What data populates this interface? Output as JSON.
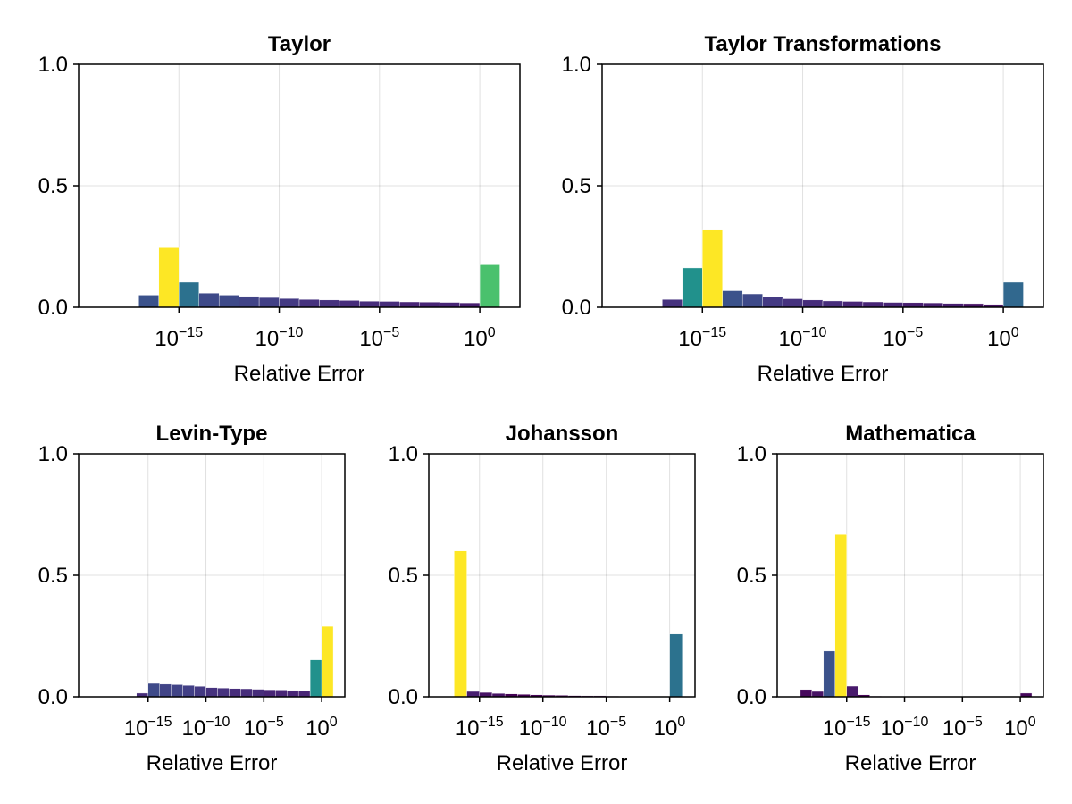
{
  "chart_data": [
    {
      "type": "bar",
      "title": "Taylor",
      "xlabel": "Relative Error",
      "ylabel": "",
      "x_scale": "log10",
      "xlim_exponent": [
        -20,
        2
      ],
      "ylim": [
        0,
        1
      ],
      "yticks": [
        "0.0",
        "0.5",
        "1.0"
      ],
      "xticks": [
        {
          "base": "10",
          "exp": "−15"
        },
        {
          "base": "10",
          "exp": "−10"
        },
        {
          "base": "10",
          "exp": "−5"
        },
        {
          "base": "10",
          "exp": "0"
        }
      ],
      "grid": true,
      "bins": [
        {
          "from": -17,
          "to": -16,
          "value": 0.05,
          "color": "#3b528b"
        },
        {
          "from": -16,
          "to": -15,
          "value": 0.245,
          "color": "#fde725"
        },
        {
          "from": -15,
          "to": -14,
          "value": 0.103,
          "color": "#2c718e"
        },
        {
          "from": -14,
          "to": -13,
          "value": 0.058,
          "color": "#3e4a89"
        },
        {
          "from": -13,
          "to": -12,
          "value": 0.05,
          "color": "#3e4a89"
        },
        {
          "from": -12,
          "to": -11,
          "value": 0.045,
          "color": "#414487"
        },
        {
          "from": -11,
          "to": -10,
          "value": 0.04,
          "color": "#424086"
        },
        {
          "from": -10,
          "to": -9,
          "value": 0.036,
          "color": "#443a83"
        },
        {
          "from": -9,
          "to": -8,
          "value": 0.032,
          "color": "#46327e"
        },
        {
          "from": -8,
          "to": -7,
          "value": 0.03,
          "color": "#46327e"
        },
        {
          "from": -7,
          "to": -6,
          "value": 0.028,
          "color": "#472d7b"
        },
        {
          "from": -6,
          "to": -5,
          "value": 0.025,
          "color": "#472d7b"
        },
        {
          "from": -5,
          "to": -4,
          "value": 0.024,
          "color": "#472d7b"
        },
        {
          "from": -4,
          "to": -3,
          "value": 0.022,
          "color": "#482576"
        },
        {
          "from": -3,
          "to": -2,
          "value": 0.021,
          "color": "#482576"
        },
        {
          "from": -2,
          "to": -1,
          "value": 0.02,
          "color": "#482576"
        },
        {
          "from": -1,
          "to": 0,
          "value": 0.018,
          "color": "#481f70"
        },
        {
          "from": 0,
          "to": 1,
          "value": 0.175,
          "color": "#4ac16d"
        }
      ]
    },
    {
      "type": "bar",
      "title": "Taylor Transformations",
      "xlabel": "Relative Error",
      "ylabel": "",
      "x_scale": "log10",
      "xlim_exponent": [
        -20,
        2
      ],
      "ylim": [
        0,
        1
      ],
      "yticks": [
        "0.0",
        "0.5",
        "1.0"
      ],
      "xticks": [
        {
          "base": "10",
          "exp": "−15"
        },
        {
          "base": "10",
          "exp": "−10"
        },
        {
          "base": "10",
          "exp": "−5"
        },
        {
          "base": "10",
          "exp": "0"
        }
      ],
      "grid": true,
      "bins": [
        {
          "from": -17,
          "to": -16,
          "value": 0.032,
          "color": "#46327e"
        },
        {
          "from": -16,
          "to": -15,
          "value": 0.162,
          "color": "#21918c"
        },
        {
          "from": -15,
          "to": -14,
          "value": 0.32,
          "color": "#fde725"
        },
        {
          "from": -14,
          "to": -13,
          "value": 0.068,
          "color": "#3b528b"
        },
        {
          "from": -13,
          "to": -12,
          "value": 0.055,
          "color": "#3e4a89"
        },
        {
          "from": -12,
          "to": -11,
          "value": 0.042,
          "color": "#443a83"
        },
        {
          "from": -11,
          "to": -10,
          "value": 0.035,
          "color": "#46327e"
        },
        {
          "from": -10,
          "to": -9,
          "value": 0.03,
          "color": "#472d7b"
        },
        {
          "from": -9,
          "to": -8,
          "value": 0.026,
          "color": "#472d7b"
        },
        {
          "from": -8,
          "to": -7,
          "value": 0.024,
          "color": "#482576"
        },
        {
          "from": -7,
          "to": -6,
          "value": 0.022,
          "color": "#482576"
        },
        {
          "from": -6,
          "to": -5,
          "value": 0.02,
          "color": "#482576"
        },
        {
          "from": -5,
          "to": -4,
          "value": 0.019,
          "color": "#481f70"
        },
        {
          "from": -4,
          "to": -3,
          "value": 0.018,
          "color": "#481f70"
        },
        {
          "from": -3,
          "to": -2,
          "value": 0.016,
          "color": "#481f70"
        },
        {
          "from": -2,
          "to": -1,
          "value": 0.015,
          "color": "#471365"
        },
        {
          "from": -1,
          "to": 0,
          "value": 0.012,
          "color": "#471365"
        },
        {
          "from": 0,
          "to": 1,
          "value": 0.103,
          "color": "#31688e"
        }
      ]
    },
    {
      "type": "bar",
      "title": "Levin-Type",
      "xlabel": "Relative Error",
      "ylabel": "",
      "x_scale": "log10",
      "xlim_exponent": [
        -21,
        2
      ],
      "ylim": [
        0,
        1
      ],
      "yticks": [
        "0.0",
        "0.5",
        "1.0"
      ],
      "xticks": [
        {
          "base": "10",
          "exp": "−15"
        },
        {
          "base": "10",
          "exp": "−10"
        },
        {
          "base": "10",
          "exp": "−5"
        },
        {
          "base": "10",
          "exp": "0"
        }
      ],
      "grid": true,
      "bins": [
        {
          "from": -16,
          "to": -15,
          "value": 0.015,
          "color": "#472d7b"
        },
        {
          "from": -15,
          "to": -14,
          "value": 0.055,
          "color": "#3e4a89"
        },
        {
          "from": -14,
          "to": -13,
          "value": 0.052,
          "color": "#414487"
        },
        {
          "from": -13,
          "to": -12,
          "value": 0.05,
          "color": "#414487"
        },
        {
          "from": -12,
          "to": -11,
          "value": 0.047,
          "color": "#424086"
        },
        {
          "from": -11,
          "to": -10,
          "value": 0.043,
          "color": "#443a83"
        },
        {
          "from": -10,
          "to": -9,
          "value": 0.038,
          "color": "#46327e"
        },
        {
          "from": -9,
          "to": -8,
          "value": 0.036,
          "color": "#46327e"
        },
        {
          "from": -8,
          "to": -7,
          "value": 0.034,
          "color": "#472d7b"
        },
        {
          "from": -7,
          "to": -6,
          "value": 0.033,
          "color": "#472d7b"
        },
        {
          "from": -6,
          "to": -5,
          "value": 0.031,
          "color": "#472d7b"
        },
        {
          "from": -5,
          "to": -4,
          "value": 0.029,
          "color": "#482576"
        },
        {
          "from": -4,
          "to": -3,
          "value": 0.028,
          "color": "#482576"
        },
        {
          "from": -3,
          "to": -2,
          "value": 0.026,
          "color": "#482576"
        },
        {
          "from": -2,
          "to": -1,
          "value": 0.024,
          "color": "#482576"
        },
        {
          "from": -1,
          "to": 0,
          "value": 0.152,
          "color": "#21918c"
        },
        {
          "from": 0,
          "to": 1,
          "value": 0.29,
          "color": "#fde725"
        }
      ]
    },
    {
      "type": "bar",
      "title": "Johansson",
      "xlabel": "Relative Error",
      "ylabel": "",
      "x_scale": "log10",
      "xlim_exponent": [
        -19,
        2
      ],
      "ylim": [
        0,
        1
      ],
      "yticks": [
        "0.0",
        "0.5",
        "1.0"
      ],
      "xticks": [
        {
          "base": "10",
          "exp": "−15"
        },
        {
          "base": "10",
          "exp": "−10"
        },
        {
          "base": "10",
          "exp": "−5"
        },
        {
          "base": "10",
          "exp": "0"
        }
      ],
      "grid": true,
      "bins": [
        {
          "from": -17,
          "to": -16,
          "value": 0.6,
          "color": "#fde725"
        },
        {
          "from": -16,
          "to": -15,
          "value": 0.022,
          "color": "#481f70"
        },
        {
          "from": -15,
          "to": -14,
          "value": 0.018,
          "color": "#471365"
        },
        {
          "from": -14,
          "to": -13,
          "value": 0.014,
          "color": "#471365"
        },
        {
          "from": -13,
          "to": -12,
          "value": 0.012,
          "color": "#440154"
        },
        {
          "from": -12,
          "to": -11,
          "value": 0.01,
          "color": "#440154"
        },
        {
          "from": -11,
          "to": -10,
          "value": 0.008,
          "color": "#440154"
        },
        {
          "from": -10,
          "to": -9,
          "value": 0.007,
          "color": "#440154"
        },
        {
          "from": -9,
          "to": -8,
          "value": 0.006,
          "color": "#440154"
        },
        {
          "from": -8,
          "to": -7,
          "value": 0.005,
          "color": "#440154"
        },
        {
          "from": -7,
          "to": -6,
          "value": 0.004,
          "color": "#440154"
        },
        {
          "from": -6,
          "to": -5,
          "value": 0.004,
          "color": "#440154"
        },
        {
          "from": -5,
          "to": -4,
          "value": 0.003,
          "color": "#440154"
        },
        {
          "from": 0,
          "to": 1,
          "value": 0.258,
          "color": "#2c728e"
        }
      ]
    },
    {
      "type": "bar",
      "title": "Mathematica",
      "xlabel": "Relative Error",
      "ylabel": "",
      "x_scale": "log10",
      "xlim_exponent": [
        -21,
        2
      ],
      "ylim": [
        0,
        1
      ],
      "yticks": [
        "0.0",
        "0.5",
        "1.0"
      ],
      "xticks": [
        {
          "base": "10",
          "exp": "−15"
        },
        {
          "base": "10",
          "exp": "−10"
        },
        {
          "base": "10",
          "exp": "−5"
        },
        {
          "base": "10",
          "exp": "0"
        }
      ],
      "grid": true,
      "bins": [
        {
          "from": -19,
          "to": -18,
          "value": 0.03,
          "color": "#46085c"
        },
        {
          "from": -18,
          "to": -17,
          "value": 0.022,
          "color": "#471365"
        },
        {
          "from": -17,
          "to": -16,
          "value": 0.188,
          "color": "#3b528b"
        },
        {
          "from": -16,
          "to": -15,
          "value": 0.668,
          "color": "#fde725"
        },
        {
          "from": -15,
          "to": -14,
          "value": 0.044,
          "color": "#481a6c"
        },
        {
          "from": -14,
          "to": -13,
          "value": 0.008,
          "color": "#440154"
        },
        {
          "from": -13,
          "to": -12,
          "value": 0.003,
          "color": "#440154"
        },
        {
          "from": 0,
          "to": 1,
          "value": 0.015,
          "color": "#46085c"
        }
      ]
    }
  ]
}
